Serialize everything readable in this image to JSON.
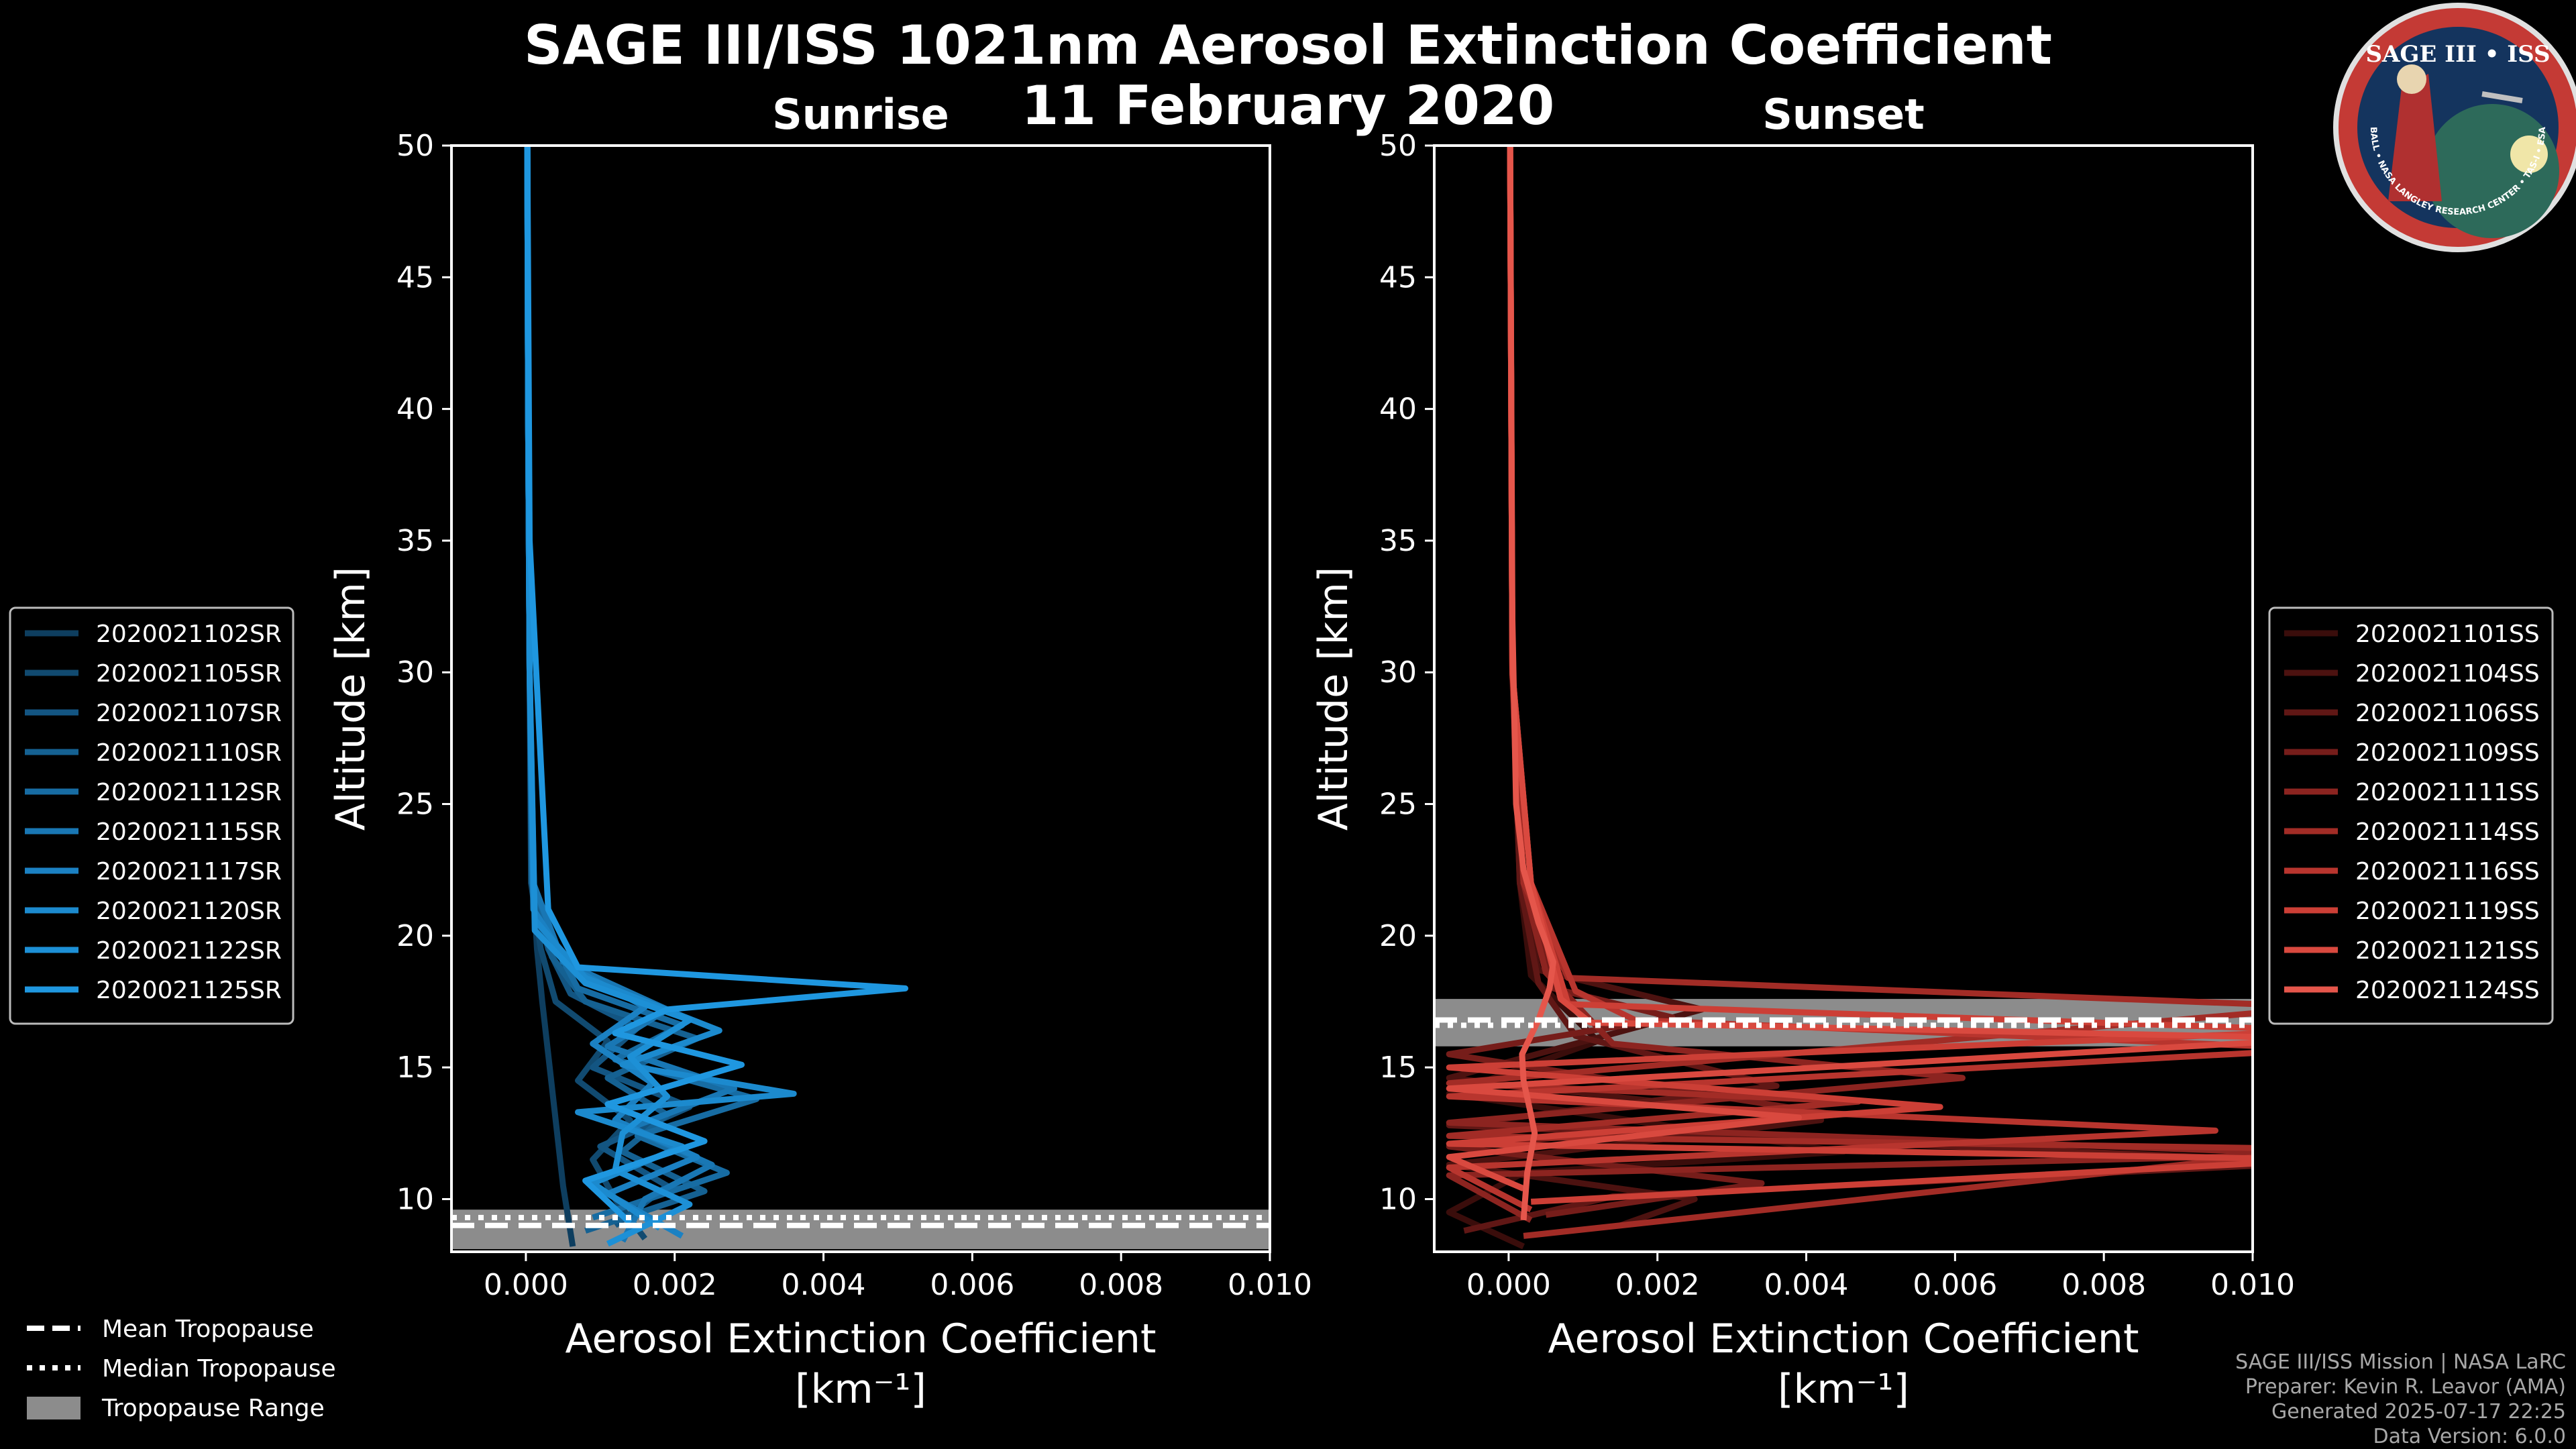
{
  "header": {
    "title_line1": "SAGE III/ISS 1021nm Aerosol Extinction Coefficient",
    "title_line2": "11 February 2020"
  },
  "logo": {
    "text_top": "SAGE III • ISS",
    "text_ring": "BALL • NASA LANGLEY RESEARCH CENTER • TAS-I • ESA"
  },
  "credits": [
    "SAGE III/ISS Mission | NASA LaRC",
    "Preparer: Kevin R. Leavor (AMA)",
    "Generated 2025-07-17 22:25",
    "Data Version: 6.0.0"
  ],
  "bottom_legend": {
    "items": [
      {
        "label": "Mean Tropopause",
        "style": "dashed"
      },
      {
        "label": "Median Tropopause",
        "style": "dotted"
      },
      {
        "label": "Tropopause Range",
        "style": "patch"
      }
    ]
  },
  "colors": {
    "background": "#000000",
    "sunrise_base": "#1f8fd6",
    "sunset_base": "#e0544a",
    "tropopause_range": "#8c8c8c"
  },
  "chart_data": [
    {
      "type": "line",
      "subplot": "Sunrise",
      "title": "Sunrise",
      "xlabel": "Aerosol Extinction Coefficient",
      "xlabel_units": "[km⁻¹]",
      "ylabel": "Altitude [km]",
      "xlim": [
        -0.001,
        0.01
      ],
      "ylim": [
        8,
        50
      ],
      "xticks": [
        "0.000",
        "0.002",
        "0.004",
        "0.006",
        "0.008",
        "0.010"
      ],
      "xtick_values": [
        0.0,
        0.002,
        0.004,
        0.006,
        0.008,
        0.01
      ],
      "yticks": [
        10,
        15,
        20,
        25,
        30,
        35,
        40,
        45,
        50
      ],
      "tropopause": {
        "mean": 9.0,
        "median": 9.3,
        "range": [
          8.1,
          9.6
        ]
      },
      "legend_position": "left",
      "series": [
        {
          "name": "2020021102SR",
          "color": "#0e3e5f",
          "x": [
            0.00063,
            0.0005,
            0.0004,
            0.0003,
            0.00022,
            0.00015,
            0.0001,
            7e-05,
            5e-05,
            4e-05,
            3e-05,
            2e-05
          ],
          "y": [
            8.2,
            10.5,
            13,
            15.5,
            17.5,
            19.5,
            22,
            26,
            30,
            35,
            40,
            50
          ]
        },
        {
          "name": "2020021105SR",
          "color": "#114a70",
          "x": [
            0.0016,
            0.0012,
            0.0009,
            0.0014,
            0.0007,
            0.0011,
            0.0004,
            0.0002,
            7e-05,
            5e-05,
            3e-05,
            2e-05
          ],
          "y": [
            8.5,
            10,
            11.5,
            13,
            14.5,
            16,
            17.5,
            19.5,
            22,
            30,
            40,
            50
          ]
        },
        {
          "name": "2020021107SR",
          "color": "#135582",
          "x": [
            0.0012,
            0.0019,
            0.001,
            0.0022,
            0.0009,
            0.0015,
            0.0006,
            0.0003,
            8e-05,
            5e-05,
            3e-05,
            2e-05
          ],
          "y": [
            9,
            10.5,
            12,
            13.5,
            15,
            16.5,
            17.8,
            19.5,
            22,
            30,
            40,
            50
          ]
        },
        {
          "name": "2020021110SR",
          "color": "#156192",
          "x": [
            0.0008,
            0.0024,
            0.0013,
            0.0019,
            0.0011,
            0.0023,
            0.0008,
            0.00035,
            8e-05,
            5e-05,
            3e-05,
            2e-05
          ],
          "y": [
            8.8,
            10.3,
            11.8,
            13.2,
            14.6,
            16.1,
            17.5,
            19.2,
            22,
            30,
            40,
            50
          ]
        },
        {
          "name": "2020021112SR",
          "color": "#176ca3",
          "x": [
            0.0009,
            0.0027,
            0.0015,
            0.0031,
            0.0012,
            0.0021,
            0.0007,
            0.0004,
            9e-05,
            5e-05,
            3e-05,
            2e-05
          ],
          "y": [
            9.3,
            11,
            12.4,
            13.8,
            15.3,
            16.6,
            18,
            19.6,
            22,
            30,
            40,
            50
          ]
        },
        {
          "name": "2020021115SR",
          "color": "#1977b4",
          "x": [
            0.0013,
            0.0016,
            0.0025,
            0.0014,
            0.0028,
            0.0011,
            0.0019,
            0.0005,
            0.0001,
            5e-05,
            3e-05,
            2e-05
          ],
          "y": [
            8.4,
            10,
            11.3,
            12.7,
            14.2,
            15.8,
            17.2,
            19,
            22,
            30,
            40,
            50
          ]
        },
        {
          "name": "2020021117SR",
          "color": "#1b81c3",
          "x": [
            0.0021,
            0.0011,
            0.0023,
            0.0012,
            0.0017,
            0.0009,
            0.0016,
            0.0006,
            0.0001,
            5e-05,
            3e-05,
            2e-05
          ],
          "y": [
            8.6,
            10.2,
            11.6,
            13,
            14.4,
            15.9,
            17.3,
            18.8,
            21,
            30,
            40,
            50
          ]
        },
        {
          "name": "2020021120SR",
          "color": "#1c8ace",
          "x": [
            0.0018,
            0.0009,
            0.0021,
            0.0007,
            0.0036,
            0.0013,
            0.0026,
            0.0008,
            0.00012,
            5e-05,
            3e-05,
            2e-05
          ],
          "y": [
            8.9,
            10.6,
            12,
            13.3,
            14,
            15.1,
            16.4,
            18.4,
            20.6,
            30,
            40,
            50
          ]
        },
        {
          "name": "2020021122SR",
          "color": "#1d90d6",
          "x": [
            0.0011,
            0.0022,
            0.0012,
            0.0013,
            0.0019,
            0.0014,
            0.0022,
            0.0008,
            0.00012,
            5e-05,
            3e-05,
            2e-05
          ],
          "y": [
            8.3,
            9.8,
            11.1,
            12.5,
            13.9,
            15.4,
            16.8,
            18.2,
            20.2,
            30,
            40,
            50
          ]
        },
        {
          "name": "2020021125SR",
          "color": "#1f97e0",
          "x": [
            0.0014,
            0.0008,
            0.0024,
            0.0011,
            0.0029,
            0.0012,
            0.0019,
            0.0051,
            0.0007,
            0.0003,
            5e-05,
            2e-05
          ],
          "y": [
            9.1,
            10.7,
            12.2,
            13.6,
            15.1,
            16.3,
            17.2,
            18,
            18.8,
            21,
            35,
            50
          ]
        }
      ]
    },
    {
      "type": "line",
      "subplot": "Sunset",
      "title": "Sunset",
      "xlabel": "Aerosol Extinction Coefficient",
      "xlabel_units": "[km⁻¹]",
      "ylabel": "Altitude [km]",
      "xlim": [
        -0.001,
        0.01
      ],
      "ylim": [
        8,
        50
      ],
      "xticks": [
        "0.000",
        "0.002",
        "0.004",
        "0.006",
        "0.008",
        "0.010"
      ],
      "xtick_values": [
        0.0,
        0.002,
        0.004,
        0.006,
        0.008,
        0.01
      ],
      "yticks": [
        10,
        15,
        20,
        25,
        30,
        35,
        40,
        45,
        50
      ],
      "tropopause": {
        "mean": 16.8,
        "median": 16.6,
        "range": [
          15.8,
          17.6
        ]
      },
      "legend_position": "right",
      "series": [
        {
          "name": "2020021101SS",
          "color": "#3a0d0b",
          "x": [
            0.0002,
            -0.0008,
            0.0002,
            0.0045,
            -0.0008,
            0.0012,
            0.0003,
            0.00015,
            5e-05,
            2e-05
          ],
          "y": [
            8.2,
            9.5,
            11,
            11.8,
            14,
            16,
            18.5,
            22,
            30,
            50
          ]
        },
        {
          "name": "2020021104SS",
          "color": "#4c1210",
          "x": [
            0.0015,
            0.0025,
            -0.0008,
            0.0042,
            -0.0008,
            0.0026,
            0.0004,
            0.00015,
            5e-05,
            2e-05
          ],
          "y": [
            9,
            10,
            11.3,
            13,
            14.6,
            17.2,
            18.7,
            22,
            30,
            50
          ]
        },
        {
          "name": "2020021106SS",
          "color": "#601715",
          "x": [
            -0.0006,
            0.0014,
            0.011,
            -0.0008,
            0.0036,
            0.0009,
            0.0004,
            0.00015,
            5e-05,
            2e-05
          ],
          "y": [
            8.8,
            10.1,
            11.4,
            12.8,
            14.3,
            16.2,
            18.2,
            22,
            30,
            50
          ]
        },
        {
          "name": "2020021109SS",
          "color": "#761d1a",
          "x": [
            0.0005,
            0.0034,
            -0.0008,
            0.0044,
            -0.0008,
            0.0022,
            0.0006,
            0.0002,
            5e-05,
            2e-05
          ],
          "y": [
            9.4,
            10.6,
            12,
            13.2,
            15.5,
            16.9,
            18,
            22,
            30,
            50
          ]
        },
        {
          "name": "2020021111SS",
          "color": "#8c2420",
          "x": [
            0.0003,
            -0.0008,
            0.011,
            -0.0008,
            0.0061,
            0.0014,
            0.0005,
            0.0002,
            5e-05,
            2e-05
          ],
          "y": [
            9.2,
            10.9,
            11.7,
            12.9,
            14.6,
            15.9,
            18.6,
            22,
            30,
            50
          ]
        },
        {
          "name": "2020021114SS",
          "color": "#a22c26",
          "x": [
            0.0002,
            0.011,
            -0.0008,
            0.0047,
            -0.0008,
            0.011,
            0.0008,
            0.0002,
            5e-05,
            2e-05
          ],
          "y": [
            8.6,
            11.9,
            12.4,
            13.7,
            14.4,
            17.3,
            18.4,
            22,
            30,
            50
          ]
        },
        {
          "name": "2020021116SS",
          "color": "#b8352e",
          "x": [
            0.0003,
            -0.0008,
            0.0095,
            -0.0008,
            0.011,
            0.0017,
            0.0009,
            0.0003,
            5e-05,
            2e-05
          ],
          "y": [
            9.6,
            11.2,
            12.6,
            13.9,
            15.7,
            16.8,
            17.9,
            22,
            30,
            50
          ]
        },
        {
          "name": "2020021119SS",
          "color": "#cc3f36",
          "x": [
            0.0003,
            0.011,
            -0.0008,
            0.0058,
            -0.0008,
            0.011,
            0.0008,
            0.0003,
            5e-05,
            2e-05
          ],
          "y": [
            9.9,
            11.5,
            12.1,
            13.5,
            15,
            16.4,
            17.4,
            22,
            30,
            50
          ]
        },
        {
          "name": "2020021121SS",
          "color": "#d9493f",
          "x": [
            0.0002,
            -0.0008,
            0.0039,
            -0.0008,
            0.011,
            0.0011,
            0.0007,
            0.0003,
            5e-05,
            2e-05
          ],
          "y": [
            10.4,
            11.6,
            13.1,
            14.2,
            16.1,
            16.7,
            17.6,
            22,
            30,
            50
          ]
        },
        {
          "name": "2020021124SS",
          "color": "#e5564b",
          "x": [
            0.0002,
            0.00025,
            0.00035,
            0.0003,
            0.0002,
            0.00018,
            0.0004,
            0.00055,
            0.0006,
            0.0004,
            0.0002,
            0.0001,
            5e-05,
            2e-05
          ],
          "y": [
            9.2,
            11,
            12.5,
            13.2,
            14.5,
            15.5,
            16.8,
            18,
            19,
            20.5,
            22.5,
            25,
            32,
            50
          ]
        }
      ]
    }
  ]
}
